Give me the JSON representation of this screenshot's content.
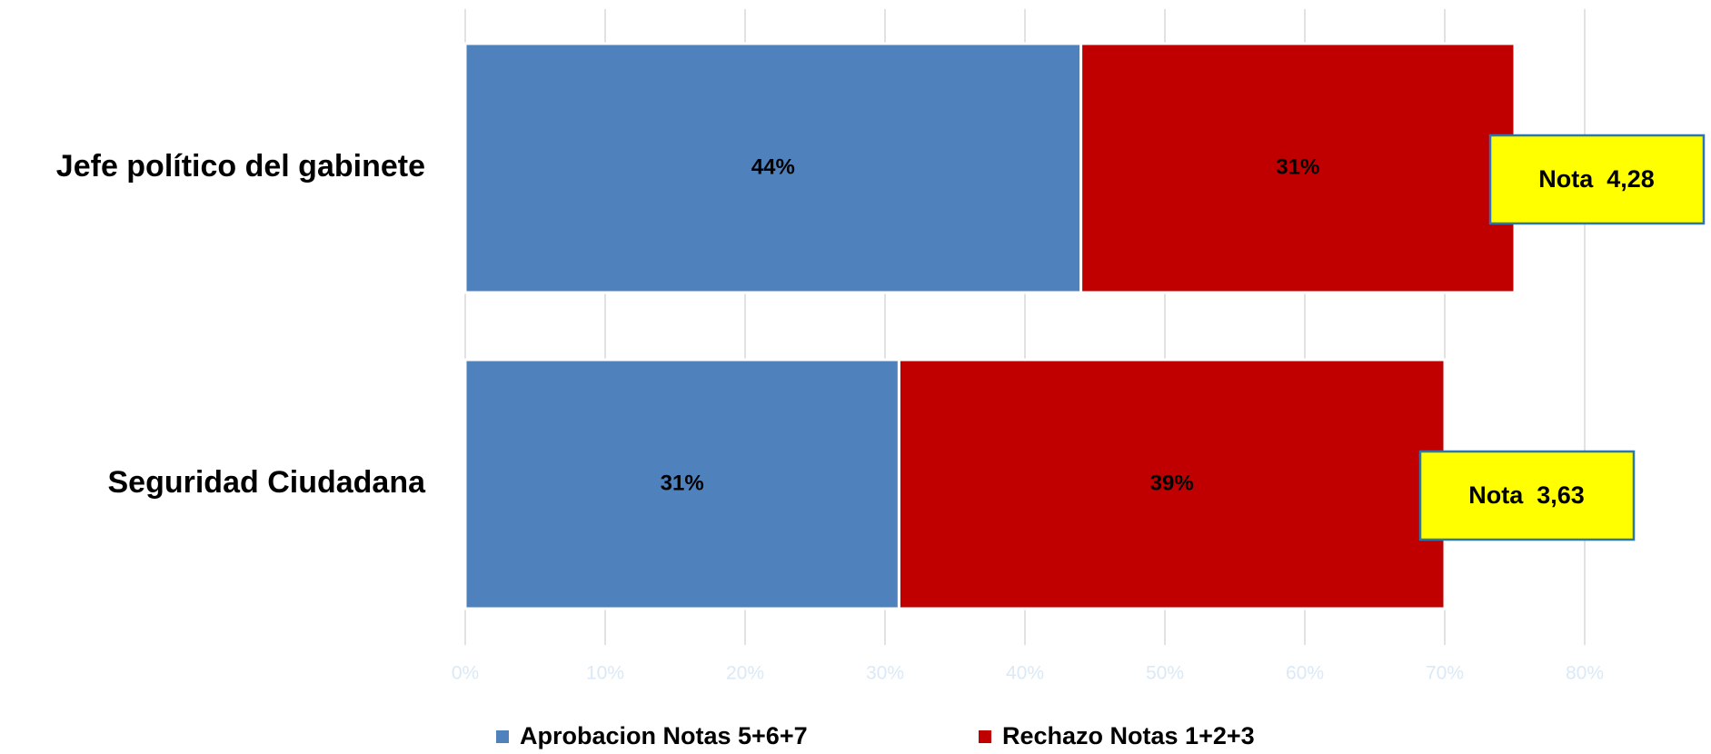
{
  "chart_data": {
    "type": "stacked-barh",
    "categories": [
      "Jefe político del gabinete",
      "Seguridad Ciudadana"
    ],
    "series": [
      {
        "name": "Aprobacion Notas 5+6+7",
        "color": "#4f81bd",
        "values": [
          44,
          31
        ],
        "value_labels": [
          "44%",
          "31%"
        ]
      },
      {
        "name": "Rechazo Notas 1+2+3",
        "color": "#c00000",
        "values": [
          31,
          39
        ],
        "value_labels": [
          "31%",
          "39%"
        ]
      }
    ],
    "annotations": [
      "Nota  4,28",
      "Nota  3,63"
    ],
    "xlim": [
      0,
      80
    ],
    "xticks": [
      {
        "value": 0,
        "label": "0%"
      },
      {
        "value": 10,
        "label": "10%"
      },
      {
        "value": 20,
        "label": "20%"
      },
      {
        "value": 30,
        "label": "30%"
      },
      {
        "value": 40,
        "label": "40%"
      },
      {
        "value": 50,
        "label": "50%"
      },
      {
        "value": 60,
        "label": "60%"
      },
      {
        "value": 70,
        "label": "70%"
      },
      {
        "value": 80,
        "label": "80%"
      }
    ],
    "grid": true,
    "legend": "bottom"
  }
}
